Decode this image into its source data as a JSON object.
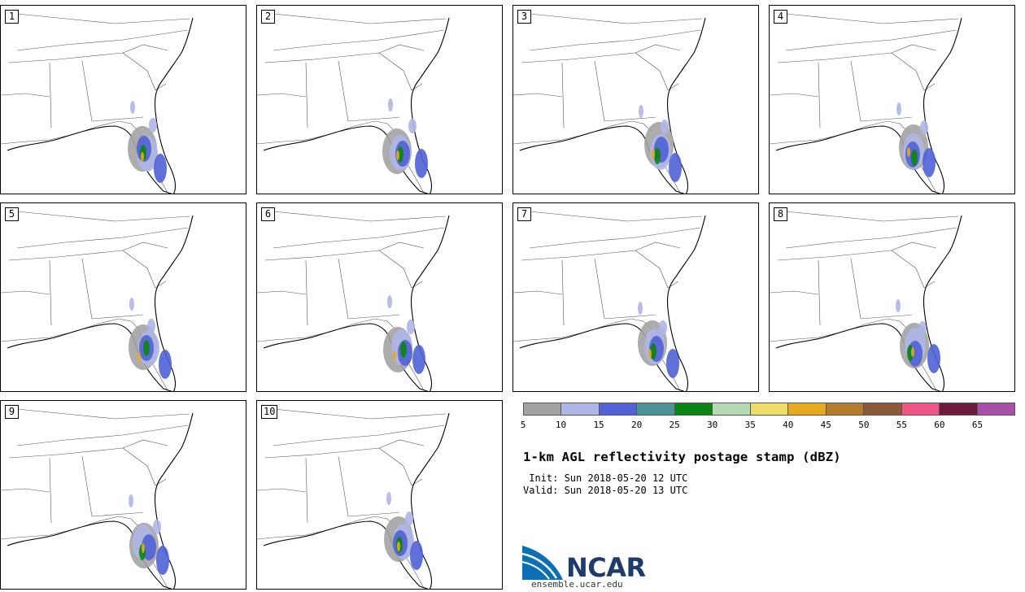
{
  "figure": {
    "title": "1-km AGL reflectivity postage stamp (dBZ)",
    "init_line": " Init: Sun 2018-05-20 12 UTC",
    "valid_line": "Valid: Sun 2018-05-20 13 UTC"
  },
  "members": [
    {
      "label": "1"
    },
    {
      "label": "2"
    },
    {
      "label": "3"
    },
    {
      "label": "4"
    },
    {
      "label": "5"
    },
    {
      "label": "6"
    },
    {
      "label": "7"
    },
    {
      "label": "8"
    },
    {
      "label": "9"
    },
    {
      "label": "10"
    }
  ],
  "colorbar": {
    "units": "dBZ",
    "ticks": [
      "5",
      "10",
      "15",
      "20",
      "25",
      "30",
      "35",
      "40",
      "45",
      "50",
      "55",
      "60",
      "65"
    ],
    "colors": [
      "#a3a3a3",
      "#aeb6e6",
      "#5062d6",
      "#4a9397",
      "#0b8512",
      "#b5dbb5",
      "#ecde68",
      "#e8a81f",
      "#b57b2f",
      "#8b5a3b",
      "#ef5585",
      "#6d1a3e",
      "#a84fa7"
    ]
  },
  "branding": {
    "logo_text": "NCAR",
    "url": "ensemble.ucar.edu"
  }
}
